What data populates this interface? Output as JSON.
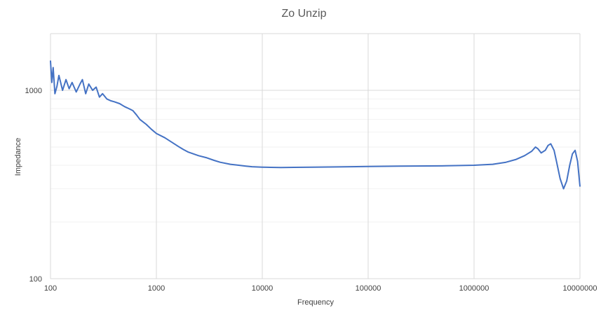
{
  "chart_data": {
    "type": "line",
    "title": "Zo Unzip",
    "xlabel": "Frequency",
    "ylabel": "Impedance",
    "xscale": "log",
    "yscale": "log",
    "xlim": [
      100,
      10000000
    ],
    "ylim": [
      100,
      2000
    ],
    "x_ticks": [
      "100",
      "1000",
      "10000",
      "100000",
      "1000000",
      "10000000"
    ],
    "y_ticks": [
      "100",
      "1000"
    ],
    "grid": "on",
    "legend": "none",
    "series": [
      {
        "color": "#4472c4",
        "x": [
          100,
          103,
          106,
          110,
          115,
          120,
          130,
          140,
          150,
          160,
          175,
          190,
          200,
          215,
          230,
          250,
          270,
          290,
          310,
          340,
          370,
          400,
          450,
          500,
          550,
          600,
          650,
          700,
          800,
          900,
          1000,
          1200,
          1400,
          1600,
          1800,
          2000,
          2500,
          3000,
          3500,
          4000,
          5000,
          6000,
          7000,
          8000,
          10000,
          12000,
          15000,
          20000,
          30000,
          50000,
          100000,
          200000,
          500000,
          1000000,
          1500000,
          2000000,
          2500000,
          3000000,
          3500000,
          3800000,
          4000000,
          4300000,
          4700000,
          5000000,
          5300000,
          5700000,
          6000000,
          6500000,
          7000000,
          7500000,
          8000000,
          8500000,
          9000000,
          9500000,
          10000000
        ],
        "y": [
          1430,
          1100,
          1320,
          960,
          1050,
          1200,
          1000,
          1140,
          1020,
          1100,
          980,
          1080,
          1140,
          960,
          1080,
          1000,
          1040,
          920,
          960,
          900,
          880,
          870,
          850,
          820,
          800,
          780,
          740,
          700,
          660,
          620,
          590,
          560,
          530,
          505,
          485,
          470,
          450,
          438,
          425,
          415,
          405,
          400,
          396,
          393,
          391,
          390,
          389,
          390,
          391,
          392,
          394,
          396,
          397,
          400,
          405,
          415,
          430,
          450,
          475,
          500,
          490,
          465,
          480,
          510,
          520,
          480,
          420,
          340,
          300,
          330,
          400,
          460,
          480,
          420,
          310
        ]
      }
    ]
  }
}
